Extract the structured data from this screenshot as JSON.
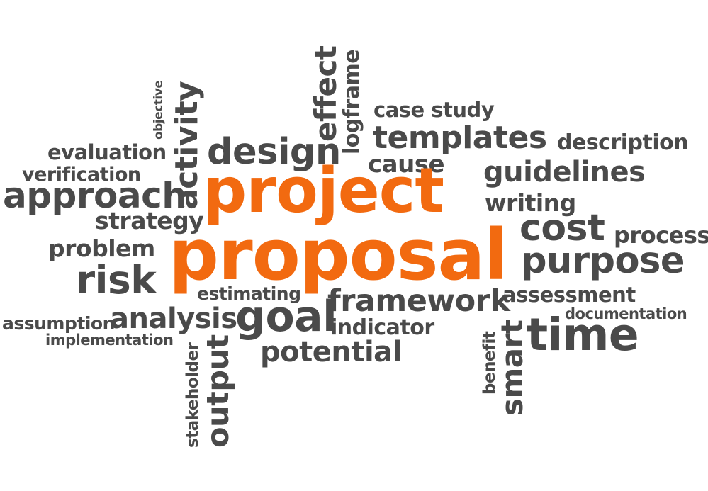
{
  "colors": {
    "background": "#ffffff",
    "word": "#4a4a4a",
    "accent": "#f26a10"
  },
  "words": {
    "project": "project",
    "proposal": "proposal",
    "objective": "objective",
    "activity": "activity",
    "effect": "effect",
    "logframe": "logframe",
    "case_study": "case study",
    "templates": "templates",
    "description": "description",
    "evaluation": "evaluation",
    "design": "design",
    "cause": "cause",
    "guidelines": "guidelines",
    "verification": "verification",
    "approach": "approach",
    "writing": "writing",
    "strategy": "strategy",
    "cost": "cost",
    "process": "process",
    "problem": "problem",
    "purpose": "purpose",
    "risk": "risk",
    "estimating": "estimating",
    "framework": "framework",
    "assessment": "assessment",
    "documentation": "documentation",
    "assumption": "assumption",
    "analysis": "analysis",
    "goal": "goal",
    "indicator": "indicator",
    "time": "time",
    "implementation": "implementation",
    "potential": "potential",
    "stakeholder": "stakeholder",
    "output": "output",
    "benefit": "benefit",
    "smart": "smart"
  }
}
